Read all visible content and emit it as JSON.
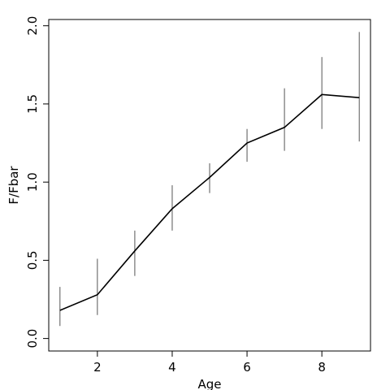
{
  "chart_data": {
    "type": "line",
    "title": "",
    "xlabel": "Age",
    "ylabel": "F/Fbar",
    "xlim": [
      0.7,
      9.3
    ],
    "ylim": [
      -0.08,
      2.04
    ],
    "x_ticks": [
      2,
      4,
      6,
      8
    ],
    "y_ticks": [
      0.0,
      0.5,
      1.0,
      1.5,
      2.0
    ],
    "x_tick_labels": [
      "2",
      "4",
      "6",
      "8"
    ],
    "y_tick_labels": [
      "0.0",
      "0.5",
      "1.0",
      "1.5",
      "2.0"
    ],
    "grid": false,
    "legend": "none",
    "series": [
      {
        "x": [
          1,
          2,
          3,
          4,
          5,
          6,
          7,
          8,
          9
        ],
        "y": [
          0.18,
          0.28,
          0.56,
          0.83,
          1.03,
          1.25,
          1.35,
          1.56,
          1.54
        ],
        "error_low": [
          0.08,
          0.15,
          0.4,
          0.69,
          0.93,
          1.13,
          1.2,
          1.34,
          1.26
        ],
        "error_high": [
          0.33,
          0.51,
          0.69,
          0.98,
          1.12,
          1.34,
          1.6,
          1.8,
          1.96
        ]
      }
    ],
    "colors": {
      "line": "#000000",
      "error_bar": "#555555",
      "axis": "#000000"
    }
  }
}
